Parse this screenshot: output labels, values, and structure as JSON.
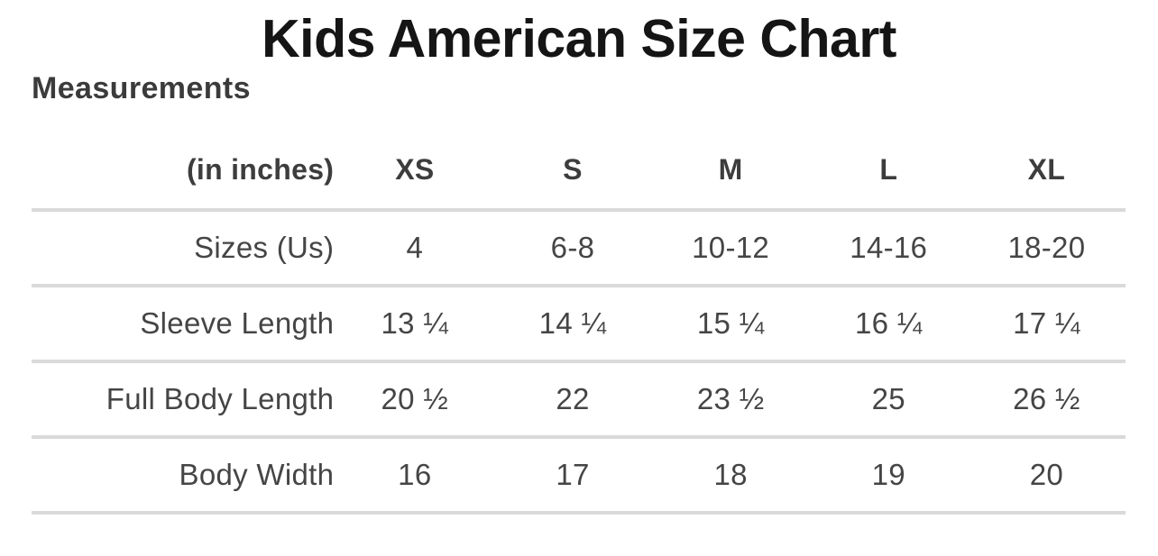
{
  "page": {
    "title": "Kids American Size Chart",
    "section_heading": "Measurements"
  },
  "colors": {
    "background": "#ffffff",
    "title_text": "#151515",
    "heading_text": "#3b3b3b",
    "table_header_text": "#3d3d3d",
    "table_body_text": "#454545",
    "divider": "#dadada"
  },
  "chart_data": {
    "type": "table",
    "title": "Kids American Size Chart",
    "subtitle": "Measurements",
    "unit_label": "(in inches)",
    "columns": [
      "XS",
      "S",
      "M",
      "L",
      "XL"
    ],
    "rows": [
      {
        "label": "Sizes (Us)",
        "values": [
          "4",
          "6-8",
          "10-12",
          "14-16",
          "18-20"
        ]
      },
      {
        "label": "Sleeve Length",
        "values": [
          "13 ¼",
          "14 ¼",
          "15 ¼",
          "16 ¼",
          "17 ¼"
        ]
      },
      {
        "label": "Full Body Length",
        "values": [
          "20 ½",
          "22",
          "23 ½",
          "25",
          "26 ½"
        ]
      },
      {
        "label": "Body Width",
        "values": [
          "16",
          "17",
          "18",
          "19",
          "20"
        ]
      }
    ],
    "layout": {
      "grid": "horizontal rules between rows only",
      "label_column_alignment": "right",
      "value_alignment": "center"
    }
  }
}
